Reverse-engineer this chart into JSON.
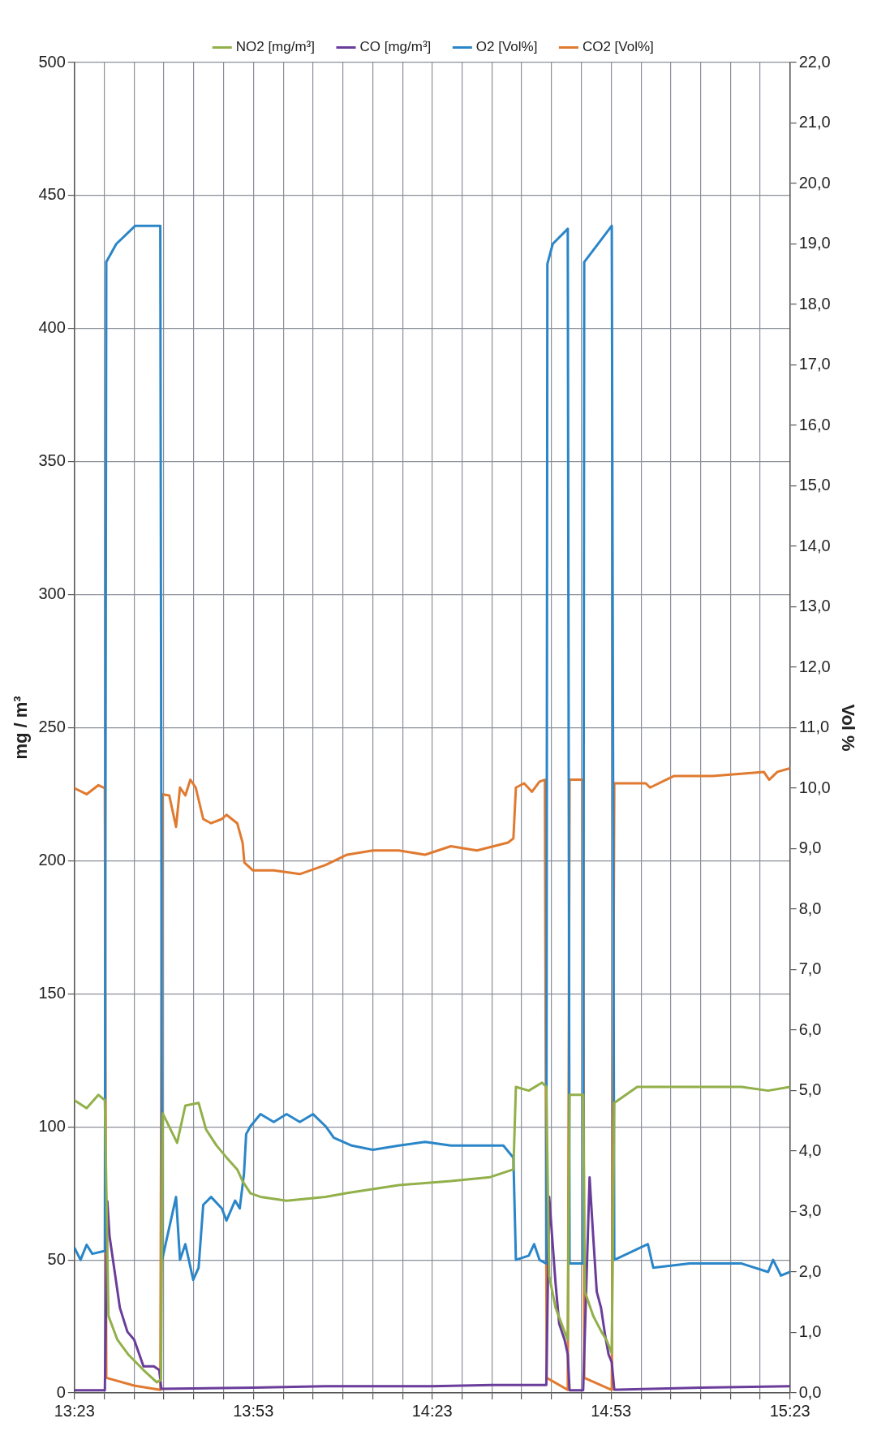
{
  "chart_data": {
    "type": "line",
    "ylabel": "mg / m³",
    "y2label": "Vol %",
    "legend": "top",
    "grid": true,
    "marker": "none",
    "line_style": "solid",
    "xlim": [
      13.383,
      15.383
    ],
    "xticks": [
      {
        "value": 13.383,
        "label": "13:23"
      },
      {
        "value": 13.467,
        "label": null
      },
      {
        "value": 13.55,
        "label": null
      },
      {
        "value": 13.633,
        "label": null
      },
      {
        "value": 13.717,
        "label": null
      },
      {
        "value": 13.8,
        "label": null
      },
      {
        "value": 13.883,
        "label": "13:53"
      },
      {
        "value": 13.967,
        "label": null
      },
      {
        "value": 14.05,
        "label": null
      },
      {
        "value": 14.133,
        "label": null
      },
      {
        "value": 14.217,
        "label": null
      },
      {
        "value": 14.3,
        "label": null
      },
      {
        "value": 14.383,
        "label": "14:23"
      },
      {
        "value": 14.467,
        "label": null
      },
      {
        "value": 14.55,
        "label": null
      },
      {
        "value": 14.633,
        "label": null
      },
      {
        "value": 14.717,
        "label": null
      },
      {
        "value": 14.8,
        "label": null
      },
      {
        "value": 14.883,
        "label": "14:53"
      },
      {
        "value": 14.967,
        "label": null
      },
      {
        "value": 15.05,
        "label": null
      },
      {
        "value": 15.133,
        "label": null
      },
      {
        "value": 15.217,
        "label": null
      },
      {
        "value": 15.3,
        "label": null
      },
      {
        "value": 15.383,
        "label": "15:23"
      }
    ],
    "ylim": [
      0,
      500
    ],
    "yticks": [
      0,
      50,
      100,
      150,
      200,
      250,
      300,
      350,
      400,
      450,
      500
    ],
    "y2lim": [
      0,
      22
    ],
    "y2ticks": [
      {
        "value": 0,
        "label": "0,0"
      },
      {
        "value": 1,
        "label": "1,0"
      },
      {
        "value": 2,
        "label": "2,0"
      },
      {
        "value": 3,
        "label": "3,0"
      },
      {
        "value": 4,
        "label": "4,0"
      },
      {
        "value": 5,
        "label": "5,0"
      },
      {
        "value": 6,
        "label": "6,0"
      },
      {
        "value": 7,
        "label": "7,0"
      },
      {
        "value": 8,
        "label": "8,0"
      },
      {
        "value": 9,
        "label": "9,0"
      },
      {
        "value": 10,
        "label": "10,0"
      },
      {
        "value": 11,
        "label": "11,0"
      },
      {
        "value": 12,
        "label": "12,0"
      },
      {
        "value": 13,
        "label": "13,0"
      },
      {
        "value": 14,
        "label": "14,0"
      },
      {
        "value": 15,
        "label": "15,0"
      },
      {
        "value": 16,
        "label": "16,0"
      },
      {
        "value": 17,
        "label": "17,0"
      },
      {
        "value": 18,
        "label": "18,0"
      },
      {
        "value": 19,
        "label": "19,0"
      },
      {
        "value": 20,
        "label": "20,0"
      },
      {
        "value": 21,
        "label": "21,0"
      },
      {
        "value": 22,
        "label": "22,0"
      }
    ],
    "series": [
      {
        "name": "NO2 [mg/m³]",
        "color": "#92b04a",
        "x": [
          13.383,
          13.417,
          13.45,
          13.468,
          13.478,
          13.503,
          13.533,
          13.576,
          13.613,
          13.625,
          13.63,
          13.67,
          13.693,
          13.73,
          13.751,
          13.78,
          13.808,
          13.838,
          13.853,
          13.875,
          13.903,
          13.976,
          14.085,
          14.145,
          14.29,
          14.435,
          14.545,
          14.61,
          14.617,
          14.653,
          14.69,
          14.702,
          14.71,
          14.728,
          14.753,
          14.762,
          14.767,
          14.805,
          14.81,
          14.833,
          14.856,
          14.87,
          14.885,
          14.892,
          14.956,
          15.103,
          15.248,
          15.322,
          15.383
        ],
        "values": [
          110,
          107,
          112,
          110,
          29,
          20,
          14.5,
          8.6,
          4,
          5,
          105,
          94,
          108,
          109,
          99,
          93,
          88.5,
          84,
          79.6,
          75,
          73.7,
          72.2,
          73.7,
          75.1,
          78.1,
          79.6,
          81.1,
          84,
          115,
          113.6,
          116.6,
          115,
          44,
          32,
          23,
          20,
          112,
          112,
          38,
          29,
          23,
          20,
          15,
          109,
          115,
          115,
          115,
          113.6,
          115
        ]
      },
      {
        "name": "CO [mg/m³]",
        "color": "#6a3d9a",
        "x": [
          13.383,
          13.468,
          13.475,
          13.481,
          13.51,
          13.531,
          13.55,
          13.576,
          13.605,
          13.62,
          13.626,
          13.883,
          14.083,
          14.383,
          14.55,
          14.702,
          14.71,
          14.728,
          14.738,
          14.753,
          14.762,
          14.767,
          14.805,
          14.823,
          14.833,
          14.843,
          14.855,
          14.866,
          14.876,
          14.885,
          14.892,
          15.133,
          15.383
        ],
        "values": [
          1,
          1,
          72,
          59,
          32,
          23,
          20,
          10,
          10,
          8.6,
          1.5,
          2,
          2.5,
          2.5,
          3,
          3,
          73.7,
          41,
          26,
          20,
          14.5,
          1,
          1,
          81,
          59,
          38,
          32,
          22,
          14.5,
          11.5,
          1.2,
          2,
          2.5
        ]
      },
      {
        "name": "O2 [Vol%]",
        "color": "#2a86c8",
        "axis": "y2",
        "x": [
          13.383,
          13.4,
          13.417,
          13.433,
          13.468,
          13.472,
          13.5,
          13.553,
          13.623,
          13.628,
          13.667,
          13.678,
          13.693,
          13.715,
          13.73,
          13.743,
          13.765,
          13.795,
          13.808,
          13.832,
          13.845,
          13.857,
          13.863,
          13.875,
          13.903,
          13.94,
          13.976,
          14.013,
          14.05,
          14.085,
          14.108,
          14.158,
          14.217,
          14.29,
          14.363,
          14.435,
          14.508,
          14.582,
          14.61,
          14.617,
          14.653,
          14.668,
          14.683,
          14.702,
          14.705,
          14.72,
          14.762,
          14.767,
          14.805,
          14.808,
          14.885,
          14.892,
          14.986,
          15.001,
          15.103,
          15.248,
          15.322,
          15.336,
          15.358,
          15.383
        ],
        "values": [
          2.4,
          2.2,
          2.45,
          2.3,
          2.35,
          18.7,
          19.0,
          19.3,
          19.3,
          2.2,
          3.24,
          2.2,
          2.46,
          1.87,
          2.07,
          3.11,
          3.24,
          3.05,
          2.85,
          3.18,
          3.05,
          3.63,
          4.28,
          4.41,
          4.61,
          4.48,
          4.61,
          4.48,
          4.61,
          4.41,
          4.22,
          4.09,
          4.02,
          4.09,
          4.15,
          4.09,
          4.09,
          4.09,
          3.89,
          2.2,
          2.27,
          2.46,
          2.2,
          2.14,
          18.67,
          19.0,
          19.25,
          2.14,
          2.14,
          18.7,
          19.3,
          2.2,
          2.46,
          2.07,
          2.14,
          2.14,
          2.0,
          2.2,
          1.94,
          2.0
        ]
      },
      {
        "name": "CO2 [Vol%]",
        "color": "#e07a30",
        "axis": "y2",
        "x": [
          13.383,
          13.417,
          13.45,
          13.468,
          13.472,
          13.55,
          13.623,
          13.628,
          13.648,
          13.667,
          13.678,
          13.693,
          13.707,
          13.722,
          13.743,
          13.765,
          13.795,
          13.808,
          13.838,
          13.853,
          13.858,
          13.882,
          13.94,
          14.013,
          14.085,
          14.145,
          14.217,
          14.29,
          14.363,
          14.435,
          14.508,
          14.595,
          14.61,
          14.617,
          14.64,
          14.662,
          14.683,
          14.698,
          14.703,
          14.762,
          14.767,
          14.805,
          14.808,
          14.885,
          14.892,
          14.98,
          14.992,
          15.058,
          15.167,
          15.31,
          15.325,
          15.348,
          15.383
        ],
        "values": [
          10.0,
          9.9,
          10.05,
          10.0,
          0.25,
          0.12,
          0.05,
          9.9,
          9.88,
          9.36,
          10.01,
          9.88,
          10.14,
          10.01,
          9.49,
          9.42,
          9.49,
          9.56,
          9.42,
          9.1,
          8.77,
          8.64,
          8.64,
          8.58,
          8.73,
          8.9,
          8.97,
          8.97,
          8.9,
          9.04,
          8.97,
          9.1,
          9.17,
          10.01,
          10.08,
          9.94,
          10.11,
          10.14,
          0.25,
          0.05,
          10.14,
          10.14,
          0.25,
          0.05,
          10.08,
          10.08,
          10.01,
          10.2,
          10.2,
          10.27,
          10.14,
          10.27,
          10.33
        ]
      }
    ]
  }
}
